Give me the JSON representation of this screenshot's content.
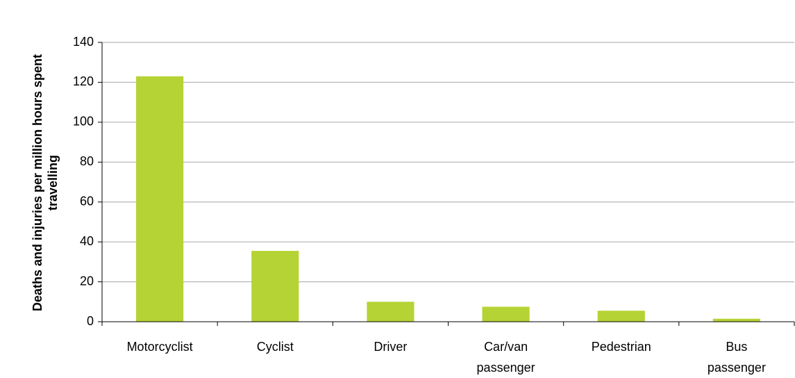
{
  "chart_data": {
    "type": "bar",
    "y_label": "Deaths and injuries per million hours spent travelling",
    "categories": [
      "Motorcyclist",
      "Cyclist",
      "Driver",
      "Car/van passenger",
      "Pedestrian",
      "Bus passenger"
    ],
    "values": [
      123,
      35.5,
      10,
      7.5,
      5.5,
      1.5
    ],
    "color": "#b5d334",
    "ylim": [
      0,
      140
    ],
    "yticks": [
      0,
      20,
      40,
      60,
      80,
      100,
      120,
      140
    ],
    "grid": true
  }
}
